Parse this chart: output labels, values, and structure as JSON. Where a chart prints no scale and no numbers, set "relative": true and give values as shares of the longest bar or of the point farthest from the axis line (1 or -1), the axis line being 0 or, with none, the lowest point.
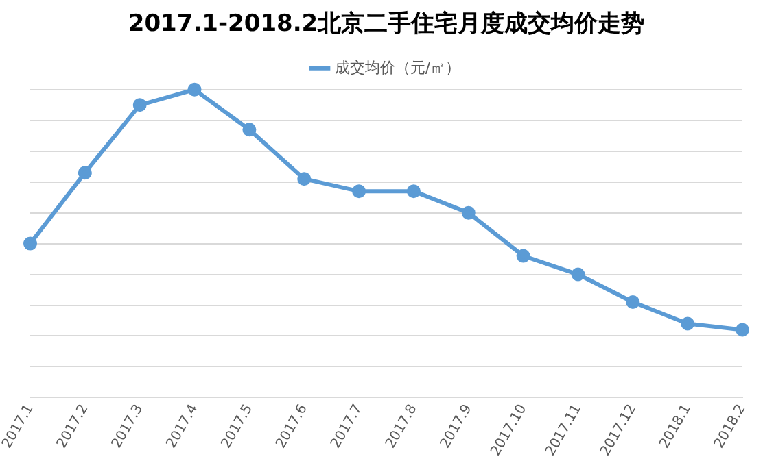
{
  "chart_data": {
    "type": "line",
    "title": "2017.1-2018.2北京二手住宅月度成交均价走势",
    "categories": [
      "2017.1",
      "2017.2",
      "2017.3",
      "2017.4",
      "2017.5",
      "2017.6",
      "2017.7",
      "2017.8",
      "2017.9",
      "2017.10",
      "2017.11",
      "2017.12",
      "2018.1",
      "2018.2"
    ],
    "series": [
      {
        "name": "成交均价（元/㎡）",
        "color": "#5b9bd5",
        "values": [
          0.5,
          0.73,
          0.95,
          1,
          0.87,
          0.71,
          0.67,
          0.67,
          0.6,
          0.46,
          0.4,
          0.31,
          0.24,
          0.22
        ]
      }
    ],
    "relative": true,
    "grid": "y",
    "legend": "top",
    "marker": "circle",
    "line_style": "solid"
  }
}
